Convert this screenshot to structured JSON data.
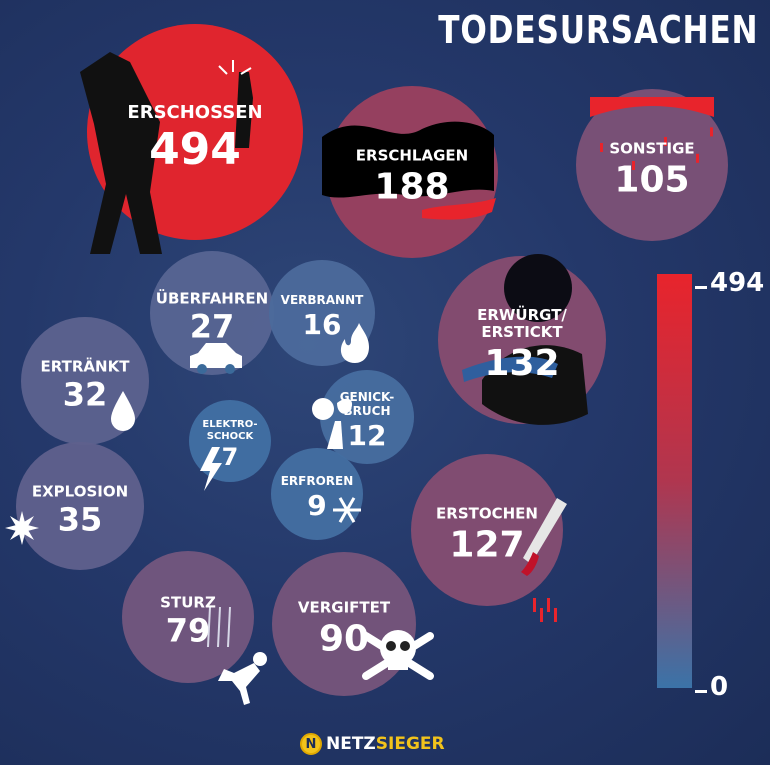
{
  "title": "TODESURSACHEN",
  "colors": {
    "max": "#e8242c",
    "mid": "#b0364f",
    "min": "#3b73a8",
    "background": "#24386a"
  },
  "legend": {
    "max_label": "494",
    "min_label": "0"
  },
  "brand": {
    "part1": "NETZ",
    "part2": "SIEGER",
    "logo_letter": "N"
  },
  "chart_data": {
    "type": "bubble",
    "title": "TODESURSACHEN",
    "scale": {
      "min": 0,
      "max": 494
    },
    "items": [
      {
        "label": "ERSCHOSSEN",
        "value": 494,
        "icon": "shooting-scene-icon"
      },
      {
        "label": "ERSCHLAGEN",
        "value": 188,
        "icon": "blood-icon"
      },
      {
        "label": "SONSTIGE",
        "value": 105,
        "icon": "blood-drip-icon"
      },
      {
        "label": "ÜBERFAHREN",
        "value": 27,
        "icon": "car-icon"
      },
      {
        "label": "VERBRANNT",
        "value": 16,
        "icon": "flame-icon"
      },
      {
        "label": "ERWÜRGT/\nERSTICKT",
        "value": 132,
        "icon": "strangled-person-icon"
      },
      {
        "label": "ERTRÄNKT",
        "value": 32,
        "icon": "water-drop-icon"
      },
      {
        "label": "GENICK-\nBRUCH",
        "value": 12,
        "icon": "broken-neck-icon"
      },
      {
        "label": "ELEKTRO-\nSCHOCK",
        "value": 7,
        "icon": "lightning-icon"
      },
      {
        "label": "EXPLOSION",
        "value": 35,
        "icon": "explosion-icon"
      },
      {
        "label": "ERFROREN",
        "value": 9,
        "icon": "snowflake-icon"
      },
      {
        "label": "ERSTOCHEN",
        "value": 127,
        "icon": "knife-icon"
      },
      {
        "label": "STURZ",
        "value": 79,
        "icon": "falling-person-icon"
      },
      {
        "label": "VERGIFTET",
        "value": 90,
        "icon": "skull-crossbones-icon"
      }
    ]
  }
}
